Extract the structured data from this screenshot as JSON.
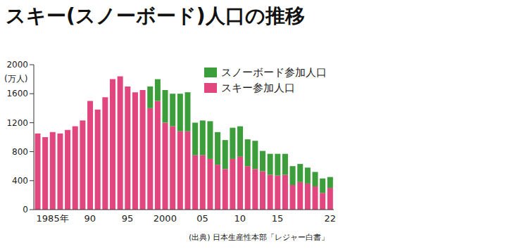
{
  "chart_data": {
    "type": "bar",
    "title": "スキー(スノーボード)人口の推移",
    "ylabel": "(万人)",
    "source": "(出典) 日本生産性本部「レジャー白書」",
    "stacked": true,
    "grid": false,
    "legend": "upper right",
    "categories": [
      null,
      null,
      "1985年",
      null,
      null,
      null,
      null,
      "90",
      null,
      null,
      null,
      null,
      "95",
      null,
      null,
      null,
      null,
      "2000",
      null,
      null,
      null,
      null,
      "05",
      null,
      null,
      null,
      null,
      "10",
      null,
      null,
      null,
      null,
      "15",
      null,
      null,
      null,
      null,
      null,
      null,
      "22"
    ],
    "series": [
      {
        "name": "スキー参加人口",
        "color": "#e2467e",
        "values": [
          1050,
          1000,
          1070,
          1050,
          1100,
          1150,
          1230,
          1500,
          1380,
          1550,
          1800,
          1840,
          1700,
          1620,
          1650,
          1400,
          1500,
          1200,
          1150,
          1080,
          1080,
          750,
          750,
          700,
          620,
          560,
          700,
          730,
          600,
          560,
          530,
          480,
          470,
          480,
          340,
          380,
          360,
          320,
          230,
          300
        ]
      },
      {
        "name": "スノーボード参加人口",
        "color": "#3c9e3a",
        "values": [
          null,
          null,
          null,
          null,
          null,
          null,
          null,
          null,
          null,
          null,
          null,
          null,
          null,
          null,
          null,
          300,
          300,
          450,
          450,
          520,
          540,
          450,
          480,
          520,
          450,
          400,
          430,
          420,
          370,
          390,
          280,
          290,
          300,
          290,
          260,
          250,
          220,
          200,
          200,
          150
        ]
      }
    ],
    "ylim": [
      0,
      2000
    ],
    "yticks": [
      0,
      400,
      800,
      1200,
      1600,
      2000
    ]
  }
}
